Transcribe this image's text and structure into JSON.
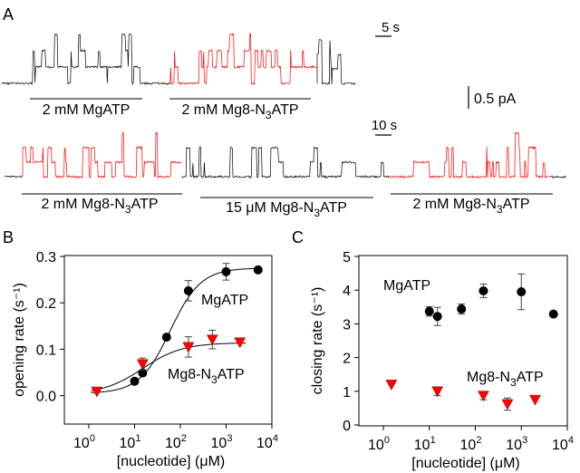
{
  "panel_labels": {
    "a": "A",
    "b": "B",
    "c": "C"
  },
  "traces": {
    "row1": {
      "segments": [
        {
          "condition": "2 mM MgATP",
          "color": "#000000"
        },
        {
          "condition": "2 mM Mg8-N3ATP",
          "color": "#ff0000"
        }
      ],
      "labels": [
        {
          "pre": "2 mM MgATP",
          "sub": "",
          "post": ""
        },
        {
          "pre": "2 mM Mg8-N",
          "sub": "3",
          "post": "ATP"
        }
      ],
      "time_scale": "5 s"
    },
    "current_scale": "0.5 pA",
    "row2": {
      "labels": [
        {
          "pre": "2 mM Mg8-N",
          "sub": "3",
          "post": "ATP"
        },
        {
          "pre": "15 μM Mg8-N",
          "sub": "3",
          "post": "ATP"
        },
        {
          "pre": "2 mM Mg8-N",
          "sub": "3",
          "post": "ATP"
        }
      ],
      "time_scale": "10 s"
    }
  },
  "colors": {
    "mgatp": "#000000",
    "n3atp": "#ff0000"
  },
  "chart_data": [
    {
      "panel": "B",
      "type": "scatter",
      "xscale": "log",
      "xlabel": "[nucleotide] (μM)",
      "ylabel": "opening rate (s⁻¹)",
      "xlim": [
        1,
        10000
      ],
      "ylim": [
        -0.03,
        0.3
      ],
      "xticks": [
        {
          "base": "10",
          "exp": "0",
          "v": 1
        },
        {
          "base": "10",
          "exp": "1",
          "v": 10
        },
        {
          "base": "10",
          "exp": "2",
          "v": 100
        },
        {
          "base": "10",
          "exp": "3",
          "v": 1000
        },
        {
          "base": "10",
          "exp": "4",
          "v": 10000
        }
      ],
      "yticks": [
        {
          "label": "0.0",
          "v": 0.0
        },
        {
          "label": "0.1",
          "v": 0.1
        },
        {
          "label": "0.2",
          "v": 0.2
        },
        {
          "label": "0.3",
          "v": 0.3
        }
      ],
      "series": [
        {
          "name": "MgATP",
          "label": {
            "pre": "MgATP",
            "sub": "",
            "post": ""
          },
          "marker": "circle",
          "color": "#000000",
          "x": [
            10,
            15,
            50,
            150,
            1000,
            5000
          ],
          "y": [
            0.031,
            0.049,
            0.126,
            0.226,
            0.267,
            0.271
          ],
          "err": [
            0.006,
            0,
            0,
            0.022,
            0.018,
            0
          ],
          "fit": {
            "model": "hill",
            "min": 0.005,
            "max": 0.275,
            "k": 60,
            "n": 1.3
          }
        },
        {
          "name": "Mg8-N3ATP",
          "label": {
            "pre": "Mg8-N",
            "sub": "3",
            "post": "ATP"
          },
          "marker": "triangle-down",
          "color": "#ff0000",
          "x": [
            1.5,
            15,
            150,
            500,
            2000
          ],
          "y": [
            0.009,
            0.068,
            0.105,
            0.121,
            0.115
          ],
          "err": [
            0,
            0.013,
            0.022,
            0.02,
            0
          ],
          "fit": {
            "model": "hill",
            "min": 0.003,
            "max": 0.114,
            "k": 15,
            "n": 1.0
          }
        }
      ]
    },
    {
      "panel": "C",
      "type": "scatter",
      "xscale": "log",
      "xlabel": "[nucleotide] (μM)",
      "ylabel": "closing rate (s⁻¹)",
      "xlim": [
        1,
        10000
      ],
      "ylim": [
        0,
        5
      ],
      "xticks": [
        {
          "base": "10",
          "exp": "0",
          "v": 1
        },
        {
          "base": "10",
          "exp": "1",
          "v": 10
        },
        {
          "base": "10",
          "exp": "2",
          "v": 100
        },
        {
          "base": "10",
          "exp": "3",
          "v": 1000
        },
        {
          "base": "10",
          "exp": "4",
          "v": 10000
        }
      ],
      "yticks": [
        {
          "label": "0",
          "v": 0
        },
        {
          "label": "1",
          "v": 1
        },
        {
          "label": "2",
          "v": 2
        },
        {
          "label": "3",
          "v": 3
        },
        {
          "label": "4",
          "v": 4
        },
        {
          "label": "5",
          "v": 5
        }
      ],
      "series": [
        {
          "name": "MgATP",
          "label": {
            "pre": "MgATP",
            "sub": "",
            "post": ""
          },
          "marker": "circle",
          "color": "#000000",
          "x": [
            10,
            15,
            50,
            150,
            1000,
            5000
          ],
          "y": [
            3.37,
            3.22,
            3.44,
            3.98,
            3.95,
            3.29
          ],
          "err": [
            0.14,
            0.27,
            0.15,
            0.2,
            0.53,
            0
          ]
        },
        {
          "name": "Mg8-N3ATP",
          "label": {
            "pre": "Mg8-N",
            "sub": "3",
            "post": "ATP"
          },
          "marker": "triangle-down",
          "color": "#ff0000",
          "x": [
            1.5,
            15,
            150,
            500,
            2000
          ],
          "y": [
            1.2,
            1.0,
            0.87,
            0.62,
            0.75
          ],
          "err": [
            0,
            0.13,
            0.12,
            0.18,
            0
          ]
        }
      ]
    }
  ]
}
